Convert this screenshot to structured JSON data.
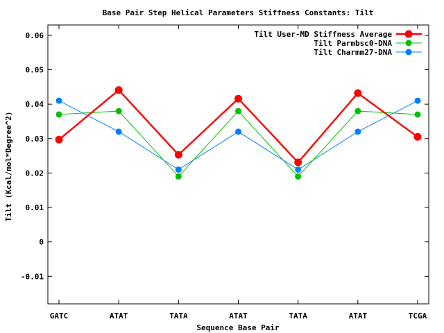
{
  "chart_data": {
    "type": "line",
    "title": "Base Pair Step Helical Parameters Stiffness Constants: Tilt",
    "xlabel": "Sequence Base Pair",
    "ylabel": "Tilt (Kcal/mol*Degree^2)",
    "categories": [
      "GATC",
      "ATAT",
      "TATA",
      "ATAT",
      "TATA",
      "ATAT",
      "TCGA"
    ],
    "ylim": [
      -0.018,
      0.063
    ],
    "yticks": [
      -0.01,
      0,
      0.01,
      0.02,
      0.03,
      0.04,
      0.05,
      0.06
    ],
    "ytick_labels": [
      "-0.01",
      "0",
      "0.01",
      "0.02",
      "0.03",
      "0.04",
      "0.05",
      "0.06"
    ],
    "grid": false,
    "legend_position": "top-right",
    "series": [
      {
        "name": "Tilt User-MD Stiffness Average",
        "color": "#ff0000",
        "values": [
          0.0297,
          0.0441,
          0.0253,
          0.0416,
          0.0231,
          0.0432,
          0.0305
        ]
      },
      {
        "name": "Tilt Parmbsc0-DNA",
        "color": "#00c000",
        "values": [
          0.037,
          0.038,
          0.019,
          0.038,
          0.019,
          0.038,
          0.037
        ]
      },
      {
        "name": "Tilt Charmm27-DNA",
        "color": "#0080ff",
        "values": [
          0.041,
          0.032,
          0.021,
          0.032,
          0.021,
          0.032,
          0.041
        ]
      }
    ]
  }
}
